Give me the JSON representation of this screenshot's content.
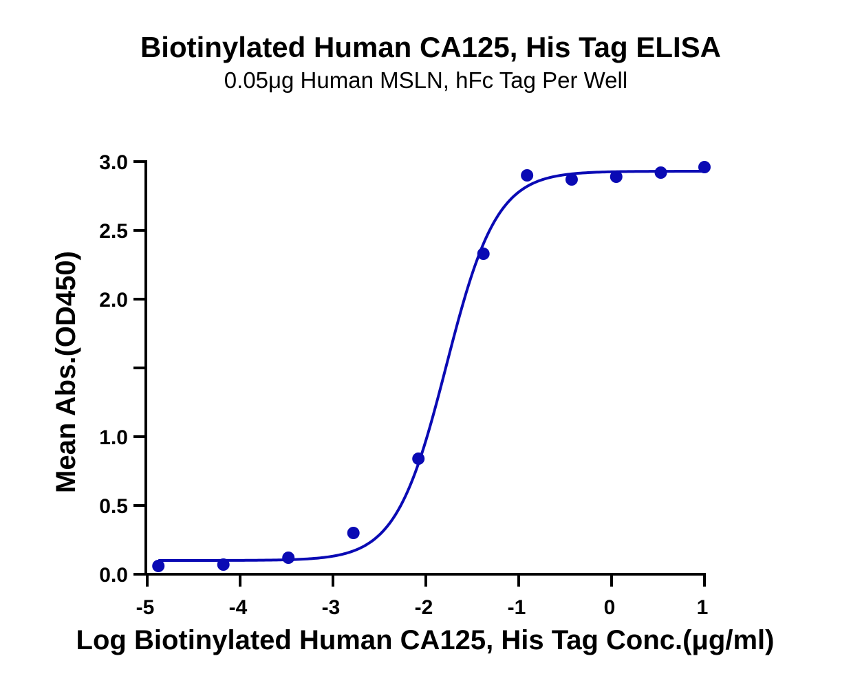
{
  "chart_data": {
    "type": "scatter",
    "title": "Biotinylated Human CA125, His Tag ELISA",
    "subtitle": "0.05μg Human MSLN, hFc Tag Per Well",
    "xlabel": "Log Biotinylated Human CA125, His Tag Conc.(μg/ml)",
    "ylabel": "Mean Abs.(OD450)",
    "xlim": [
      -5,
      1
    ],
    "ylim": [
      0,
      3.0
    ],
    "x_ticks": [
      -5,
      -4,
      -3,
      -2,
      -1,
      0,
      1
    ],
    "x_tick_labels": [
      "-5",
      "-4",
      "-3",
      "-2",
      "-1",
      "0",
      "1"
    ],
    "y_ticks": [
      0,
      0.5,
      1.0,
      1.5,
      2.0,
      2.5,
      3.0
    ],
    "y_tick_labels": [
      "0.0",
      "0.5",
      "1.0",
      "",
      "2.0",
      "2.5",
      "3.0"
    ],
    "grid": false,
    "color": "#0a0ab4",
    "series": [
      {
        "points": [
          {
            "x": -4.88,
            "y": 0.06
          },
          {
            "x": -4.18,
            "y": 0.07
          },
          {
            "x": -3.48,
            "y": 0.12
          },
          {
            "x": -2.78,
            "y": 0.3
          },
          {
            "x": -2.08,
            "y": 0.84
          },
          {
            "x": -1.38,
            "y": 2.33
          },
          {
            "x": -0.91,
            "y": 2.9
          },
          {
            "x": -0.43,
            "y": 2.87
          },
          {
            "x": 0.05,
            "y": 2.89
          },
          {
            "x": 0.53,
            "y": 2.92
          },
          {
            "x": 1.0,
            "y": 2.96
          }
        ],
        "fit": {
          "model": "4PL",
          "bottom": 0.1,
          "top": 2.93,
          "logEC50": -1.78,
          "hillslope": 1.6,
          "x_range": [
            -4.88,
            1.0
          ]
        }
      }
    ]
  }
}
